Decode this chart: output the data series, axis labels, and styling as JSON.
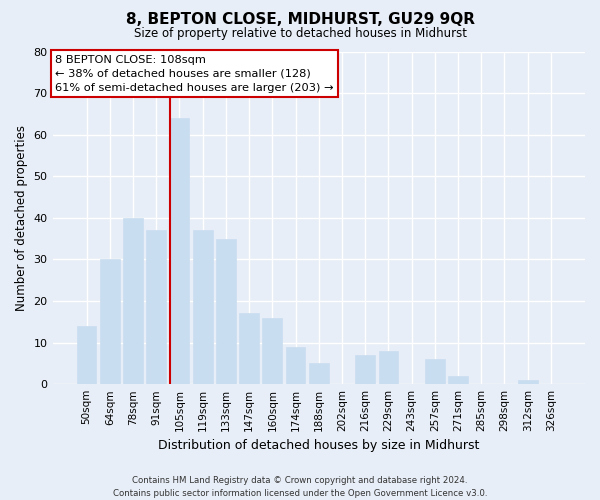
{
  "title": "8, BEPTON CLOSE, MIDHURST, GU29 9QR",
  "subtitle": "Size of property relative to detached houses in Midhurst",
  "xlabel": "Distribution of detached houses by size in Midhurst",
  "ylabel": "Number of detached properties",
  "bar_labels": [
    "50sqm",
    "64sqm",
    "78sqm",
    "91sqm",
    "105sqm",
    "119sqm",
    "133sqm",
    "147sqm",
    "160sqm",
    "174sqm",
    "188sqm",
    "202sqm",
    "216sqm",
    "229sqm",
    "243sqm",
    "257sqm",
    "271sqm",
    "285sqm",
    "298sqm",
    "312sqm",
    "326sqm"
  ],
  "bar_values": [
    14,
    30,
    40,
    37,
    64,
    37,
    35,
    17,
    16,
    9,
    5,
    0,
    7,
    8,
    0,
    6,
    2,
    0,
    0,
    1,
    0
  ],
  "highlight_index": 4,
  "bar_color": "#c9ddf0",
  "highlight_line_color": "#cc0000",
  "ylim": [
    0,
    80
  ],
  "yticks": [
    0,
    10,
    20,
    30,
    40,
    50,
    60,
    70,
    80
  ],
  "annot_line1": "8 BEPTON CLOSE: 108sqm",
  "annot_line2": "← 38% of detached houses are smaller (128)",
  "annot_line3": "61% of semi-detached houses are larger (203) →",
  "footer_line1": "Contains HM Land Registry data © Crown copyright and database right 2024.",
  "footer_line2": "Contains public sector information licensed under the Open Government Licence v3.0.",
  "bg_color": "#e8eef7",
  "plot_bg_color": "#e8eef7",
  "grid_color": "#ffffff",
  "annot_box_color": "#ffffff",
  "annot_border_color": "#cc0000"
}
